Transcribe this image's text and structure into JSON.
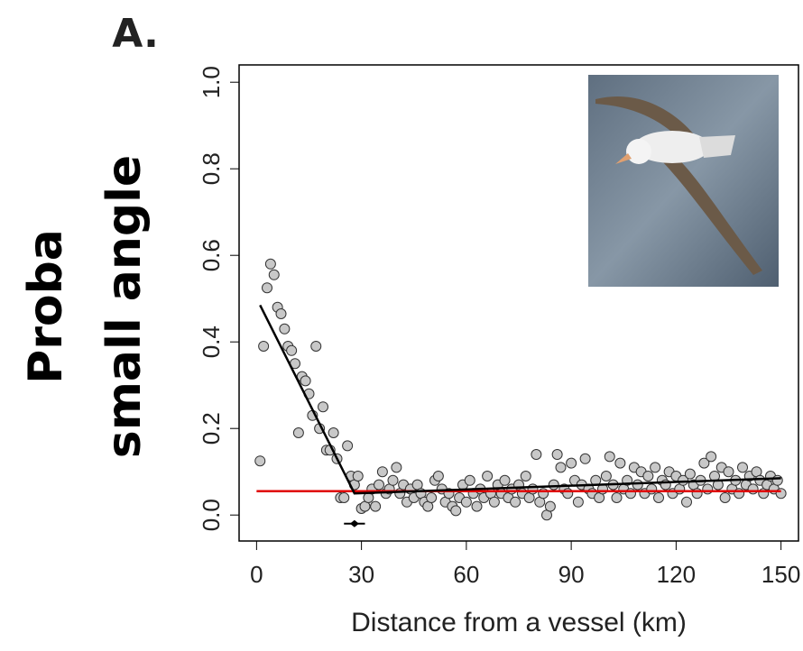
{
  "chart_data": {
    "type": "scatter",
    "panel_label": "A.",
    "ylabel": [
      "Proba",
      "small angle"
    ],
    "xlabel": "Distance from a vessel (km)",
    "xlim": [
      -5,
      155
    ],
    "ylim": [
      -0.06,
      1.04
    ],
    "xticks": [
      0,
      30,
      60,
      90,
      120,
      150
    ],
    "yticks": [
      {
        "value": 0,
        "label": "0.0"
      },
      {
        "value": 0.2,
        "label": "0.2"
      },
      {
        "value": 0.4,
        "label": "0.4"
      },
      {
        "value": 0.6,
        "label": "0.6"
      },
      {
        "value": 0.8,
        "label": "0.8"
      },
      {
        "value": 1,
        "label": "1.0"
      }
    ],
    "color": "#c8c8c8",
    "x": [
      1,
      2,
      3,
      4,
      5,
      6,
      7,
      8,
      9,
      10,
      11,
      12,
      13,
      14,
      15,
      16,
      17,
      18,
      19,
      20,
      21,
      22,
      23,
      24,
      25,
      26,
      27,
      28,
      29,
      30,
      31,
      32,
      33,
      34,
      35,
      36,
      37,
      38,
      39,
      40,
      41,
      42,
      43,
      44,
      45,
      46,
      47,
      48,
      49,
      50,
      51,
      52,
      53,
      54,
      55,
      56,
      57,
      58,
      59,
      60,
      61,
      62,
      63,
      64,
      65,
      66,
      67,
      68,
      69,
      70,
      71,
      72,
      73,
      74,
      75,
      76,
      77,
      78,
      79,
      80,
      81,
      82,
      83,
      84,
      85,
      86,
      87,
      88,
      89,
      90,
      91,
      92,
      93,
      94,
      95,
      96,
      97,
      98,
      99,
      100,
      101,
      102,
      103,
      104,
      105,
      106,
      107,
      108,
      109,
      110,
      111,
      112,
      113,
      114,
      115,
      116,
      117,
      118,
      119,
      120,
      121,
      122,
      123,
      124,
      125,
      126,
      127,
      128,
      129,
      130,
      131,
      132,
      133,
      134,
      135,
      136,
      137,
      138,
      139,
      140,
      141,
      142,
      143,
      144,
      145,
      146,
      147,
      148,
      149,
      150
    ],
    "values": [
      0.125,
      0.39,
      0.525,
      0.58,
      0.555,
      0.48,
      0.465,
      0.43,
      0.39,
      0.38,
      0.35,
      0.19,
      0.32,
      0.31,
      0.28,
      0.23,
      0.39,
      0.2,
      0.25,
      0.15,
      0.15,
      0.19,
      0.13,
      0.04,
      0.04,
      0.16,
      0.09,
      0.07,
      0.09,
      0.015,
      0.02,
      0.04,
      0.06,
      0.02,
      0.07,
      0.1,
      0.05,
      0.06,
      0.08,
      0.11,
      0.05,
      0.07,
      0.03,
      0.06,
      0.04,
      0.07,
      0.05,
      0.03,
      0.02,
      0.04,
      0.08,
      0.09,
      0.06,
      0.03,
      0.05,
      0.02,
      0.01,
      0.04,
      0.07,
      0.03,
      0.08,
      0.05,
      0.02,
      0.06,
      0.04,
      0.09,
      0.05,
      0.03,
      0.07,
      0.05,
      0.08,
      0.04,
      0.06,
      0.03,
      0.07,
      0.05,
      0.09,
      0.04,
      0.06,
      0.14,
      0.03,
      0.05,
      0,
      0.02,
      0.07,
      0.14,
      0.11,
      0.06,
      0.05,
      0.12,
      0.08,
      0.03,
      0.07,
      0.13,
      0.06,
      0.05,
      0.08,
      0.04,
      0.06,
      0.09,
      0.135,
      0.07,
      0.04,
      0.12,
      0.06,
      0.08,
      0.05,
      0.11,
      0.07,
      0.1,
      0.05,
      0.09,
      0.06,
      0.11,
      0.04,
      0.08,
      0.07,
      0.1,
      0.05,
      0.09,
      0.06,
      0.08,
      0.03,
      0.095,
      0.07,
      0.05,
      0.08,
      0.12,
      0.06,
      0.135,
      0.09,
      0.07,
      0.11,
      0.04,
      0.1,
      0.06,
      0.08,
      0.05,
      0.11,
      0.07,
      0.09,
      0.06,
      0.1,
      0.08,
      0.05,
      0.07,
      0.09,
      0.06,
      0.08,
      0.05
    ],
    "fit": {
      "color": "#000000",
      "x": [
        1,
        28,
        150
      ],
      "values": [
        0.485,
        0.05,
        0.085
      ]
    },
    "baseline": {
      "color": "#e00000",
      "x": [
        0,
        150
      ],
      "values": [
        0.055,
        0.055
      ]
    },
    "breakpoint": {
      "x": 28,
      "value": -0.02,
      "xerr": [
        25,
        31
      ]
    }
  }
}
